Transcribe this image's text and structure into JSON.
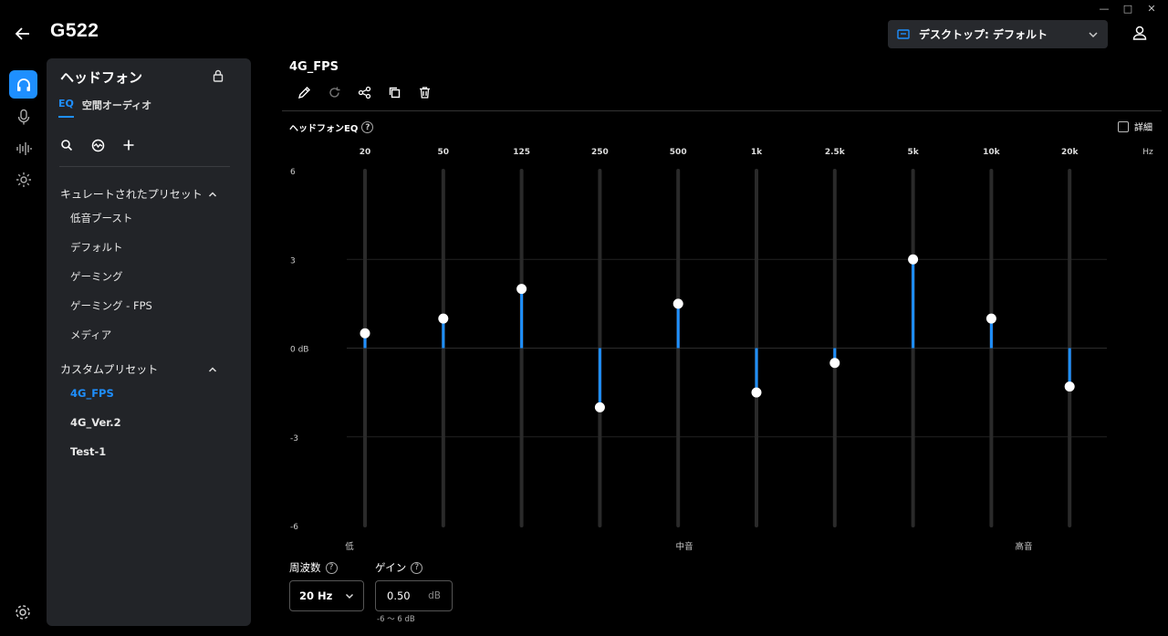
{
  "window_controls": {
    "minimize": "—",
    "maximize": "□",
    "close": "✕"
  },
  "device": {
    "title": "G522"
  },
  "profile": {
    "label": "デスクトップ: デフォルト"
  },
  "rail": [
    "headphones-icon",
    "microphone-icon",
    "audio-wave-icon",
    "lighting-icon"
  ],
  "panel": {
    "title": "ヘッドフォン",
    "tabs": [
      {
        "label": "EQ",
        "active": true
      },
      {
        "label": "空間オーディオ",
        "active": false
      }
    ],
    "curated": {
      "label": "キュレートされたプリセット",
      "items": [
        "低音ブースト",
        "デフォルト",
        "ゲーミング",
        "ゲーミング - FPS",
        "メディア"
      ]
    },
    "custom": {
      "label": "カスタムプリセット",
      "items": [
        "4G_FPS",
        "4G_Ver.2",
        "Test-1"
      ],
      "active_index": 0
    }
  },
  "preset": {
    "name": "4G_FPS"
  },
  "eq": {
    "label": "ヘッドフォンEQ",
    "detail_label": "詳細",
    "detail_checked": false,
    "unit_label": "Hz",
    "band_labels": [
      "低",
      "中音",
      "高音"
    ],
    "accent": "#1e8fff"
  },
  "chart_data": {
    "type": "bar",
    "categories": [
      "20",
      "50",
      "125",
      "250",
      "500",
      "1k",
      "2.5k",
      "5k",
      "10k",
      "20k"
    ],
    "values": [
      0.5,
      1.0,
      2.0,
      -2.0,
      1.5,
      -1.5,
      -0.5,
      3.0,
      1.0,
      -1.3
    ],
    "ylim": [
      -6,
      6
    ],
    "yticks": [
      "6",
      "3",
      "0 dB",
      "-3",
      "-6"
    ],
    "grid": true
  },
  "controls": {
    "frequency_label": "周波数",
    "frequency_value": "20 Hz",
    "gain_label": "ゲイン",
    "gain_value": "0.50",
    "gain_unit": "dB",
    "gain_range": "-6 ～ 6 dB"
  }
}
